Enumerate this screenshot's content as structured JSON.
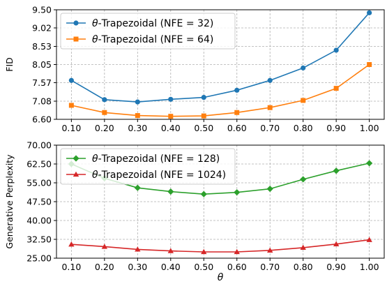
{
  "chart_data": [
    {
      "type": "line",
      "xlabel": "",
      "ylabel": "FID",
      "x": [
        0.1,
        0.2,
        0.3,
        0.4,
        0.5,
        0.6,
        0.7,
        0.8,
        0.9,
        1.0
      ],
      "x_tick_labels": [
        "0.10",
        "0.20",
        "0.30",
        "0.40",
        "0.50",
        "0.60",
        "0.70",
        "0.80",
        "0.90",
        "1.00"
      ],
      "ylim": [
        6.6,
        9.5
      ],
      "y_ticks": [
        6.6,
        7.08,
        7.57,
        8.05,
        8.53,
        9.02,
        9.5
      ],
      "y_tick_labels": [
        "6.60",
        "7.08",
        "7.57",
        "8.05",
        "8.53",
        "9.02",
        "9.50"
      ],
      "grid": true,
      "legend_position": "top-left",
      "series": [
        {
          "name": "θ-Trapezoidal (NFE = 32)",
          "color": "#1f77b4",
          "marker": "circle",
          "values": [
            7.63,
            7.12,
            7.06,
            7.13,
            7.18,
            7.37,
            7.63,
            7.96,
            8.43,
            9.42
          ]
        },
        {
          "name": "θ-Trapezoidal (NFE = 64)",
          "color": "#ff7f0e",
          "marker": "square",
          "values": [
            6.97,
            6.78,
            6.7,
            6.68,
            6.69,
            6.78,
            6.91,
            7.1,
            7.42,
            8.05
          ]
        }
      ]
    },
    {
      "type": "line",
      "xlabel": "θ",
      "ylabel": "Generative Perplexity",
      "x": [
        0.1,
        0.2,
        0.3,
        0.4,
        0.5,
        0.6,
        0.7,
        0.8,
        0.9,
        1.0
      ],
      "x_tick_labels": [
        "0.10",
        "0.20",
        "0.30",
        "0.40",
        "0.50",
        "0.60",
        "0.70",
        "0.80",
        "0.90",
        "1.00"
      ],
      "ylim": [
        25.0,
        70.0
      ],
      "y_ticks": [
        25.0,
        32.5,
        40.0,
        47.5,
        55.0,
        62.5,
        70.0
      ],
      "y_tick_labels": [
        "25.00",
        "32.50",
        "40.00",
        "47.50",
        "55.00",
        "62.50",
        "70.00"
      ],
      "grid": true,
      "legend_position": "top-left",
      "series": [
        {
          "name": "θ-Trapezoidal (NFE = 128)",
          "color": "#2ca02c",
          "marker": "diamond",
          "values": [
            62.5,
            56.8,
            53.0,
            51.5,
            50.5,
            51.2,
            52.6,
            56.4,
            59.8,
            62.8
          ]
        },
        {
          "name": "θ-Trapezoidal (NFE = 1024)",
          "color": "#d62728",
          "marker": "triangle",
          "values": [
            30.5,
            29.6,
            28.5,
            27.9,
            27.5,
            27.5,
            28.1,
            29.2,
            30.6,
            32.3
          ]
        }
      ]
    }
  ]
}
